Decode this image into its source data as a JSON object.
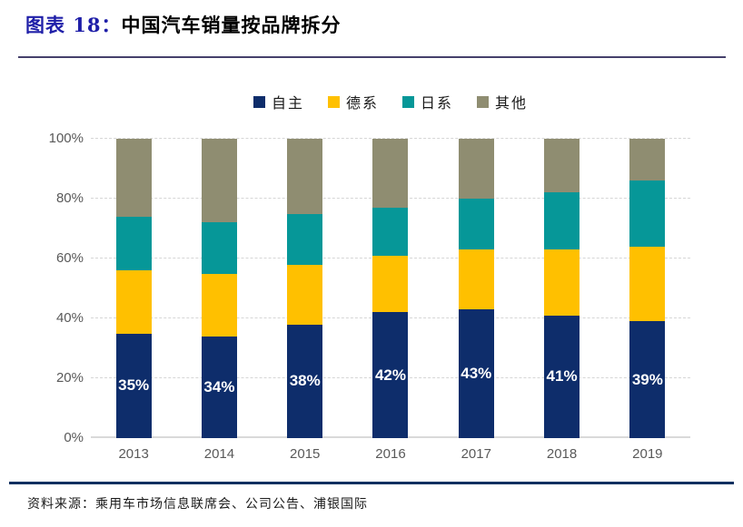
{
  "header": {
    "prefix": "图表 18：",
    "title": "中国汽车销量按品牌拆分"
  },
  "source_note": "资料来源：乘用车市场信息联席会、公司公告、浦银国际",
  "colors": {
    "zizhu_navy": "#0E2D6B",
    "dexi_yellow": "#FFC000",
    "rixi_teal": "#069798",
    "qita_olive": "#8F8D71",
    "title_blue": "#1F1FA8",
    "axis_gray": "#595959",
    "gridline_gray": "#D6D6D6",
    "bottom_rule_navy": "#0F3060"
  },
  "chart_data": {
    "type": "bar",
    "subtype": "stacked-100-percent",
    "categories": [
      "2013",
      "2014",
      "2015",
      "2016",
      "2017",
      "2018",
      "2019"
    ],
    "series": [
      {
        "name": "自主",
        "color": "#0E2D6B",
        "values": [
          35,
          34,
          38,
          42,
          43,
          41,
          39
        ]
      },
      {
        "name": "德系",
        "color": "#FFC000",
        "values": [
          21,
          21,
          20,
          19,
          20,
          22,
          25
        ]
      },
      {
        "name": "日系",
        "color": "#069798",
        "values": [
          18,
          17,
          17,
          16,
          17,
          19,
          22
        ]
      },
      {
        "name": "其他",
        "color": "#8F8D71",
        "values": [
          26,
          28,
          25,
          23,
          20,
          18,
          14
        ]
      }
    ],
    "bar_labels": [
      "35%",
      "34%",
      "38%",
      "42%",
      "43%",
      "41%",
      "39%"
    ],
    "labeled_series": "自主",
    "yticks": [
      0,
      20,
      40,
      60,
      80,
      100
    ],
    "ytick_suffix": "%",
    "ylim": [
      0,
      100
    ],
    "grid": "dashed-horizontal",
    "legend_position": "top-center",
    "xlabel": "",
    "ylabel": ""
  }
}
